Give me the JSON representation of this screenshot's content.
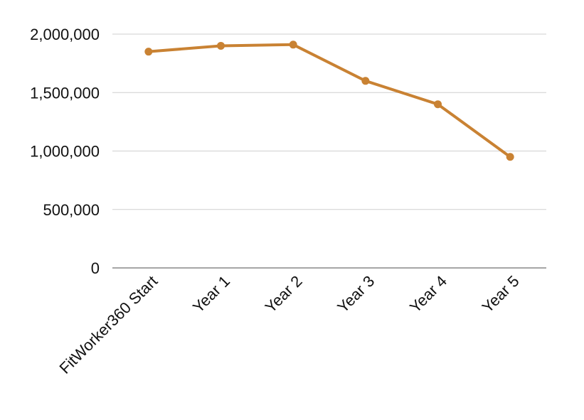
{
  "chart_data": {
    "type": "line",
    "title": "",
    "xlabel": "",
    "ylabel": "",
    "categories": [
      "FitWorker360 Start",
      "Year 1",
      "Year 2",
      "Year 3",
      "Year 4",
      "Year 5"
    ],
    "series": [
      {
        "values": [
          1850000,
          1900000,
          1910000,
          1600000,
          1400000,
          950000
        ],
        "color": "#C98233"
      }
    ],
    "ylim": [
      0,
      2000000
    ],
    "yticks": [
      0,
      500000,
      1000000,
      1500000,
      2000000
    ],
    "ytick_labels": [
      "0",
      "500,000",
      "1,000,000",
      "1,500,000",
      "2,000,000"
    ],
    "grid": true,
    "legend": "none"
  }
}
